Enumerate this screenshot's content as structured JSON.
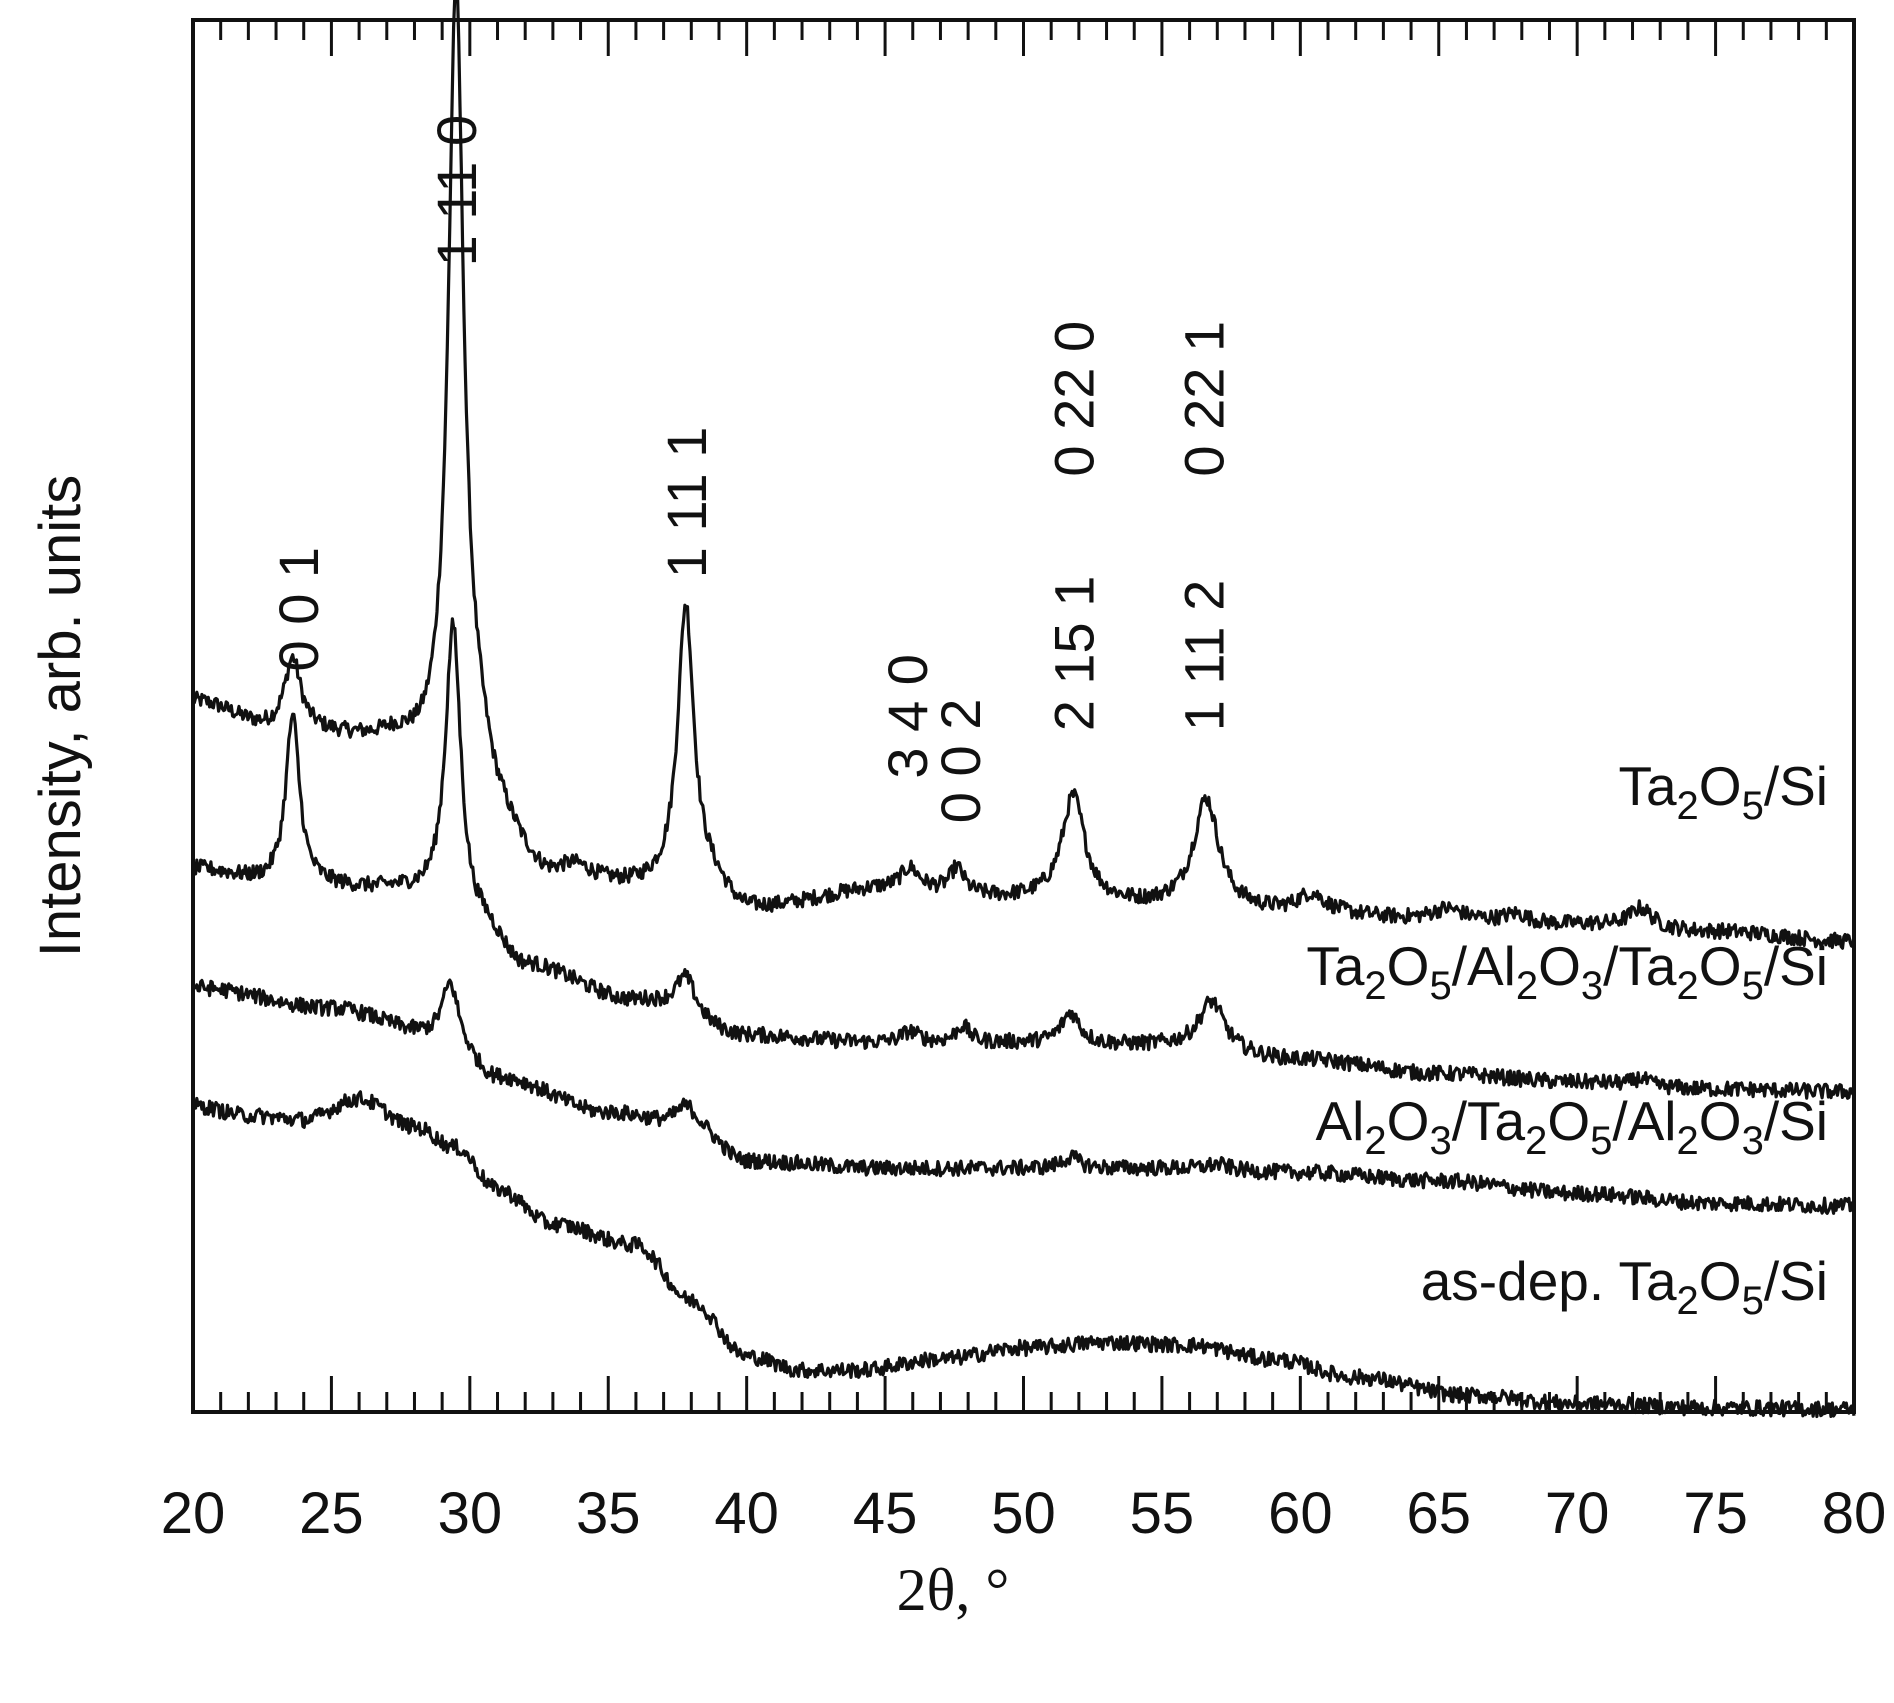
{
  "chart_data": {
    "type": "line",
    "title": "",
    "xlabel": "2θ, °",
    "ylabel": "Intensity, arb. units",
    "xlim": [
      20,
      80
    ],
    "ylim": [
      0,
      100
    ],
    "x_ticks": [
      "20",
      "25",
      "30",
      "35",
      "40",
      "45",
      "50",
      "55",
      "60",
      "65",
      "70",
      "75",
      "80"
    ],
    "grid": false,
    "legend": "none",
    "line_color": "#111111",
    "series": [
      {
        "name": "Ta2O5/Si",
        "label_parts": [
          [
            "Ta",
            ""
          ],
          [
            "2",
            "sub"
          ],
          [
            "O",
            ""
          ],
          [
            "5",
            "sub"
          ],
          [
            "/Si",
            ""
          ]
        ],
        "baseline": [
          [
            20,
            51
          ],
          [
            23,
            49
          ],
          [
            27,
            48
          ],
          [
            28.8,
            46
          ],
          [
            29.7,
            44
          ],
          [
            31,
            40
          ],
          [
            33,
            37.5
          ],
          [
            36,
            37.5
          ],
          [
            38.5,
            38
          ],
          [
            40,
            36
          ],
          [
            45,
            37.5
          ],
          [
            50,
            36.8
          ],
          [
            55,
            36.3
          ],
          [
            60,
            35.8
          ],
          [
            65,
            35.3
          ],
          [
            70,
            35
          ],
          [
            75,
            34.5
          ],
          [
            80,
            33.8
          ]
        ],
        "peaks": [
          {
            "x": 23.6,
            "h": 5,
            "w": 0.35
          },
          {
            "x": 29.5,
            "h": 56,
            "w": 0.33
          },
          {
            "x": 30.4,
            "h": 5,
            "w": 0.9
          },
          {
            "x": 33.8,
            "h": 1.2,
            "w": 0.8
          },
          {
            "x": 37.8,
            "h": 20,
            "w": 0.35
          },
          {
            "x": 45.9,
            "h": 1.5,
            "w": 0.4
          },
          {
            "x": 47.6,
            "h": 1.8,
            "w": 0.3
          },
          {
            "x": 51.8,
            "h": 7.5,
            "w": 0.5
          },
          {
            "x": 56.6,
            "h": 7.8,
            "w": 0.55
          },
          {
            "x": 60.4,
            "h": 1.3,
            "w": 0.6
          },
          {
            "x": 65.3,
            "h": 0.8,
            "w": 0.7
          },
          {
            "x": 67.8,
            "h": 0.6,
            "w": 0.5
          },
          {
            "x": 72.3,
            "h": 1.4,
            "w": 0.5
          }
        ]
      },
      {
        "name": "Ta2O5/Al2O3/Ta2O5/Si",
        "label_parts": [
          [
            "Ta",
            ""
          ],
          [
            "2",
            "sub"
          ],
          [
            "O",
            ""
          ],
          [
            "5",
            "sub"
          ],
          [
            "/Al",
            ""
          ],
          [
            "2",
            "sub"
          ],
          [
            "O",
            ""
          ],
          [
            "3",
            "sub"
          ],
          [
            "/Ta",
            ""
          ],
          [
            "2",
            "sub"
          ],
          [
            "O",
            ""
          ],
          [
            "5",
            "sub"
          ],
          [
            "/Si",
            ""
          ]
        ],
        "baseline": [
          [
            20,
            39
          ],
          [
            23,
            38
          ],
          [
            27,
            37.5
          ],
          [
            29,
            37
          ],
          [
            30.3,
            35
          ],
          [
            32,
            32
          ],
          [
            36,
            29.5
          ],
          [
            40,
            27
          ],
          [
            45,
            26.5
          ],
          [
            50,
            26.5
          ],
          [
            55,
            26.3
          ],
          [
            60,
            25.3
          ],
          [
            65,
            24.3
          ],
          [
            70,
            23.7
          ],
          [
            75,
            23.2
          ],
          [
            80,
            23
          ]
        ],
        "peaks": [
          {
            "x": 23.6,
            "h": 12,
            "w": 0.3
          },
          {
            "x": 29.4,
            "h": 20,
            "w": 0.33
          },
          {
            "x": 37.8,
            "h": 2.8,
            "w": 0.45
          },
          {
            "x": 45.9,
            "h": 0.8,
            "w": 0.4
          },
          {
            "x": 47.8,
            "h": 1.2,
            "w": 0.3
          },
          {
            "x": 51.7,
            "h": 2.2,
            "w": 0.4
          },
          {
            "x": 56.8,
            "h": 3.5,
            "w": 0.55
          },
          {
            "x": 72.3,
            "h": 0.5,
            "w": 0.3
          }
        ]
      },
      {
        "name": "Al2O3/Ta2O5/Al2O3/Si",
        "label_parts": [
          [
            "Al",
            ""
          ],
          [
            "2",
            "sub"
          ],
          [
            "O",
            ""
          ],
          [
            "3",
            "sub"
          ],
          [
            "/Ta",
            ""
          ],
          [
            "2",
            "sub"
          ],
          [
            "O",
            ""
          ],
          [
            "5",
            "sub"
          ],
          [
            "/Al",
            ""
          ],
          [
            "2",
            "sub"
          ],
          [
            "O",
            ""
          ],
          [
            "3",
            "sub"
          ],
          [
            "/Si",
            ""
          ]
        ],
        "baseline": [
          [
            20,
            30.5
          ],
          [
            25,
            29
          ],
          [
            29,
            27
          ],
          [
            31,
            24
          ],
          [
            35,
            21.5
          ],
          [
            38,
            20.5
          ],
          [
            40,
            18
          ],
          [
            45,
            17.5
          ],
          [
            50,
            17.5
          ],
          [
            55,
            17.5
          ],
          [
            60,
            17.2
          ],
          [
            65,
            16.6
          ],
          [
            70,
            15.7
          ],
          [
            75,
            15
          ],
          [
            80,
            14.8
          ]
        ],
        "peaks": [
          {
            "x": 29.3,
            "h": 4,
            "w": 0.35
          },
          {
            "x": 37.8,
            "h": 1.5,
            "w": 0.45
          },
          {
            "x": 51.7,
            "h": 0.8,
            "w": 0.4
          },
          {
            "x": 57.0,
            "h": 0.4,
            "w": 0.5
          }
        ]
      },
      {
        "name": "as-dep. Ta2O5/Si",
        "label_parts": [
          [
            "as-dep. Ta",
            ""
          ],
          [
            "2",
            "sub"
          ],
          [
            "O",
            ""
          ],
          [
            "5",
            "sub"
          ],
          [
            "/Si",
            ""
          ]
        ],
        "baseline": [
          [
            20,
            22
          ],
          [
            22,
            21.3
          ],
          [
            24,
            21
          ],
          [
            26,
            22.5
          ],
          [
            28,
            20.5
          ],
          [
            29.5,
            19
          ],
          [
            31,
            16
          ],
          [
            33,
            13.5
          ],
          [
            36,
            12
          ],
          [
            38,
            8
          ],
          [
            40,
            4
          ],
          [
            42,
            3
          ],
          [
            44,
            3
          ],
          [
            47,
            3.8
          ],
          [
            50,
            4.6
          ],
          [
            53,
            5
          ],
          [
            56,
            4.8
          ],
          [
            59,
            3.8
          ],
          [
            62,
            2.5
          ],
          [
            66,
            1.2
          ],
          [
            70,
            0.6
          ],
          [
            75,
            0.3
          ],
          [
            80,
            0.2
          ]
        ],
        "peaks": []
      }
    ],
    "peak_annotations": [
      {
        "label": "0 0 1",
        "x": 23.8,
        "y": 53.2
      },
      {
        "label": "1 11 0",
        "x": 29.5,
        "y": 82.3
      },
      {
        "label": "1 11 1",
        "x": 37.8,
        "y": 59.9
      },
      {
        "label": "3 4 0",
        "x": 45.8,
        "y": 45.5
      },
      {
        "label": "0 0 2",
        "x": 47.7,
        "y": 42.3
      },
      {
        "label": "2 15 1",
        "x": 51.8,
        "y": 48.9
      },
      {
        "label": "0 22 0",
        "x": 51.8,
        "y": 67.2
      },
      {
        "label": "1 11 2",
        "x": 56.5,
        "y": 48.9
      },
      {
        "label": "0 22 1",
        "x": 56.5,
        "y": 67.2
      }
    ]
  }
}
